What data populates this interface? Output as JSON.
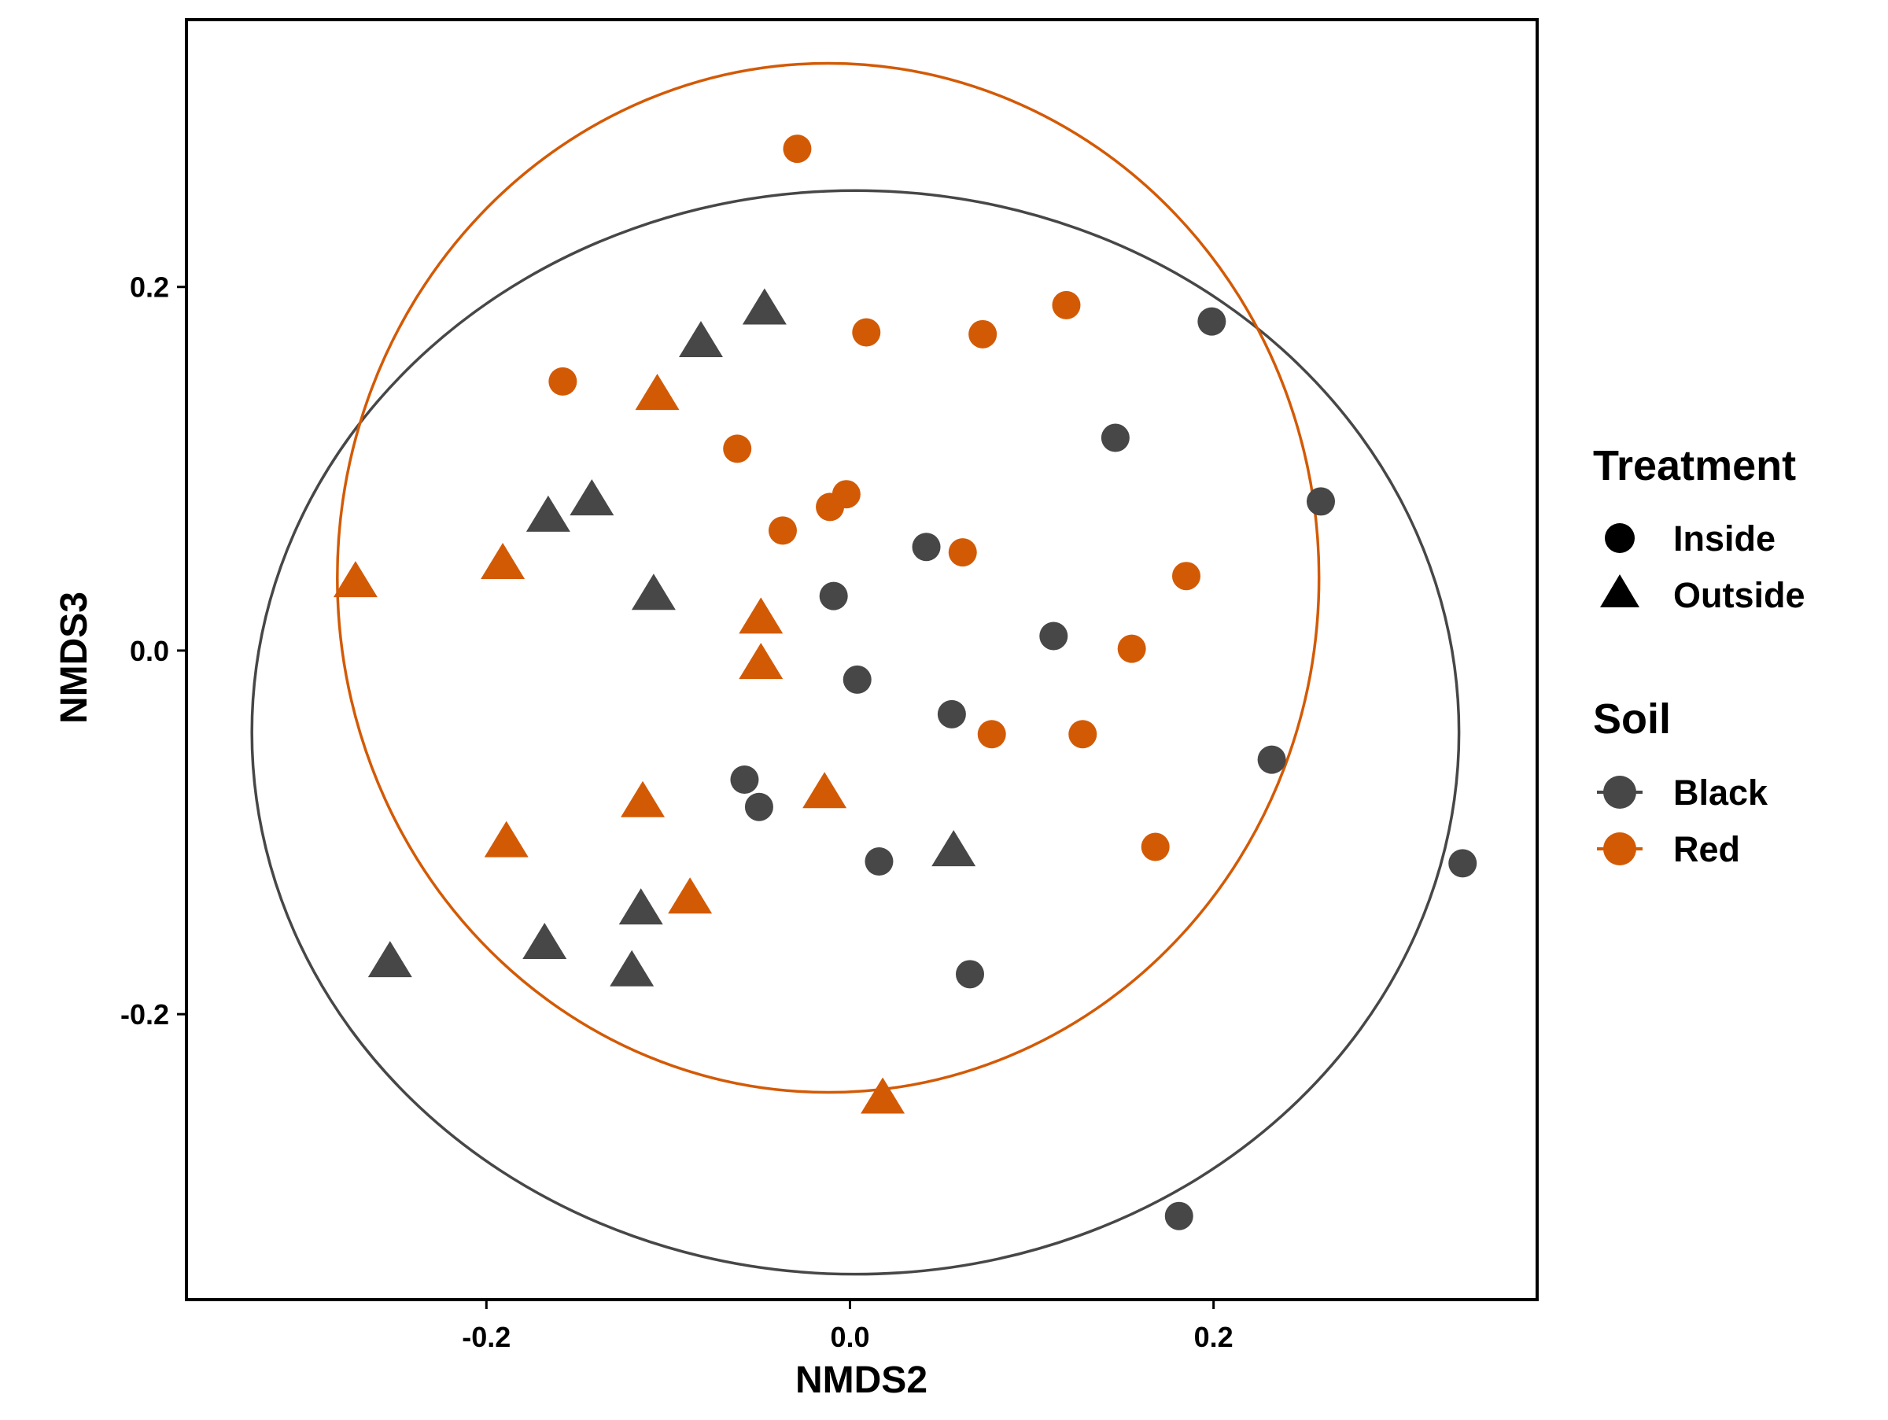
{
  "chart_data": {
    "type": "scatter",
    "xlabel": "NMDS2",
    "ylabel": "NMDS3",
    "xlim": [
      -0.365,
      0.378
    ],
    "ylim": [
      -0.357,
      0.347
    ],
    "x_ticks": [
      "-0.2",
      "0.0",
      "0.2"
    ],
    "y_ticks": [
      "0.2",
      "0.0",
      "-0.2"
    ],
    "x_tick_values": [
      -0.2,
      0.0,
      0.2
    ],
    "y_tick_values": [
      0.2,
      0.0,
      -0.2
    ],
    "grid": false,
    "legend_placement": "right",
    "legends": {
      "treatment": {
        "title": "Treatment",
        "items": [
          {
            "label": "Inside",
            "shape": "circle"
          },
          {
            "label": "Outside",
            "shape": "triangle"
          }
        ]
      },
      "soil": {
        "title": "Soil",
        "items": [
          {
            "label": "Black",
            "color": "#474747"
          },
          {
            "label": "Red",
            "color": "#d35a05"
          }
        ]
      }
    },
    "colors": {
      "Black": "#474747",
      "Red": "#d35a05"
    },
    "ellipses": [
      {
        "soil": "Black",
        "center": [
          0.003,
          -0.045
        ],
        "radius_x": 0.332,
        "radius_y": 0.298
      },
      {
        "soil": "Red",
        "center": [
          -0.012,
          0.04
        ],
        "radius_x": 0.27,
        "radius_y": 0.283
      }
    ],
    "series": [
      {
        "soil": "Black",
        "treatment": "Inside",
        "points": [
          [
            0.199,
            0.181
          ],
          [
            0.146,
            0.117
          ],
          [
            0.259,
            0.082
          ],
          [
            0.042,
            0.057
          ],
          [
            -0.009,
            0.03
          ],
          [
            0.112,
            0.008
          ],
          [
            0.004,
            -0.016
          ],
          [
            0.056,
            -0.035
          ],
          [
            0.232,
            -0.06
          ],
          [
            -0.058,
            -0.071
          ],
          [
            -0.05,
            -0.086
          ],
          [
            0.016,
            -0.116
          ],
          [
            0.337,
            -0.117
          ],
          [
            0.066,
            -0.178
          ],
          [
            0.181,
            -0.311
          ]
        ]
      },
      {
        "soil": "Black",
        "treatment": "Outside",
        "points": [
          [
            -0.047,
            0.188
          ],
          [
            -0.082,
            0.17
          ],
          [
            -0.142,
            0.083
          ],
          [
            -0.166,
            0.074
          ],
          [
            -0.108,
            0.031
          ],
          [
            0.057,
            -0.11
          ],
          [
            -0.115,
            -0.142
          ],
          [
            -0.168,
            -0.161
          ],
          [
            -0.253,
            -0.171
          ],
          [
            -0.12,
            -0.176
          ]
        ]
      },
      {
        "soil": "Red",
        "treatment": "Inside",
        "points": [
          [
            -0.029,
            0.276
          ],
          [
            0.119,
            0.19
          ],
          [
            0.009,
            0.175
          ],
          [
            0.073,
            0.174
          ],
          [
            -0.158,
            0.148
          ],
          [
            -0.062,
            0.111
          ],
          [
            -0.002,
            0.086
          ],
          [
            -0.011,
            0.079
          ],
          [
            -0.037,
            0.066
          ],
          [
            0.062,
            0.054
          ],
          [
            0.185,
            0.041
          ],
          [
            0.155,
            0.001
          ],
          [
            0.078,
            -0.046
          ],
          [
            0.128,
            -0.046
          ],
          [
            0.168,
            -0.108
          ]
        ]
      },
      {
        "soil": "Red",
        "treatment": "Outside",
        "points": [
          [
            -0.106,
            0.141
          ],
          [
            -0.191,
            0.048
          ],
          [
            -0.272,
            0.038
          ],
          [
            -0.049,
            0.018
          ],
          [
            -0.049,
            -0.007
          ],
          [
            -0.114,
            -0.083
          ],
          [
            -0.014,
            -0.078
          ],
          [
            -0.189,
            -0.105
          ],
          [
            -0.088,
            -0.136
          ],
          [
            0.018,
            -0.246
          ]
        ]
      }
    ]
  }
}
